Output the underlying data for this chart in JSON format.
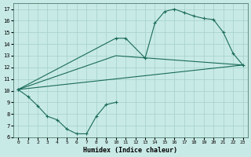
{
  "title": "",
  "xlabel": "Humidex (Indice chaleur)",
  "bg_color": "#c8eae6",
  "grid_color": "#aad4ce",
  "line_color": "#1a6b5a",
  "xlim": [
    -0.5,
    23.5
  ],
  "ylim": [
    6,
    17.5
  ],
  "xticks": [
    0,
    1,
    2,
    3,
    4,
    5,
    6,
    7,
    8,
    9,
    10,
    11,
    12,
    13,
    14,
    15,
    16,
    17,
    18,
    19,
    20,
    21,
    22,
    23
  ],
  "yticks": [
    6,
    7,
    8,
    9,
    10,
    11,
    12,
    13,
    14,
    15,
    16,
    17
  ],
  "line1_x": [
    0,
    1,
    2,
    3,
    4,
    5,
    6,
    7,
    8,
    9,
    10
  ],
  "line1_y": [
    10.1,
    9.5,
    8.7,
    7.8,
    7.5,
    6.7,
    6.3,
    6.3,
    7.8,
    8.8,
    9.0
  ],
  "line2_x": [
    0,
    10,
    11,
    13,
    14,
    15,
    16,
    17,
    18,
    19,
    20,
    21,
    22,
    23
  ],
  "line2_y": [
    10.1,
    14.5,
    14.5,
    12.8,
    15.8,
    16.8,
    17.0,
    16.7,
    16.4,
    16.2,
    16.1,
    15.0,
    13.2,
    12.2
  ],
  "line3_x": [
    0,
    10,
    23
  ],
  "line3_y": [
    10.1,
    13.0,
    12.2
  ],
  "line4_x": [
    0,
    23
  ],
  "line4_y": [
    10.1,
    12.2
  ]
}
